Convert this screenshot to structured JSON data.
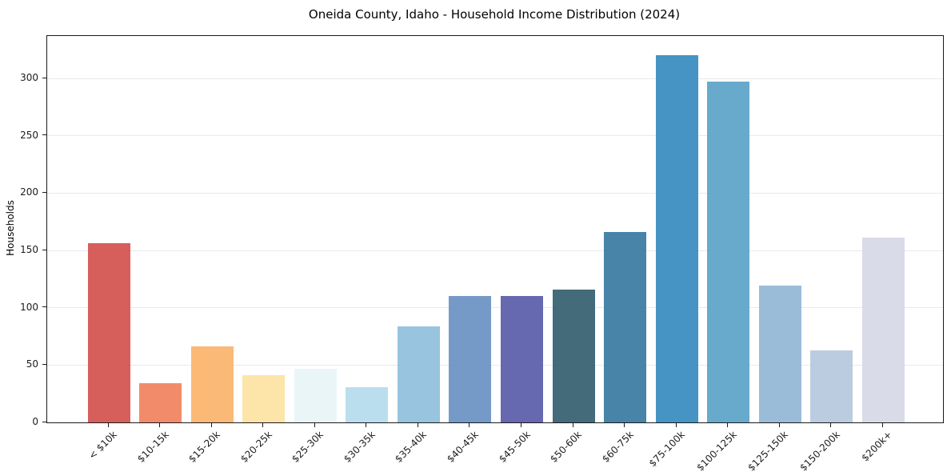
{
  "chart_data": {
    "type": "bar",
    "title": "Oneida County, Idaho - Household Income Distribution (2024)",
    "xlabel": "",
    "ylabel": "Households",
    "categories": [
      "< $10k",
      "$10-15k",
      "$15-20k",
      "$20-25k",
      "$25-30k",
      "$30-35k",
      "$35-40k",
      "$40-45k",
      "$45-50k",
      "$50-60k",
      "$60-75k",
      "$75-100k",
      "$100-125k",
      "$125-150k",
      "$150-200k",
      "$200k+"
    ],
    "values": [
      156,
      34,
      66,
      41,
      47,
      31,
      84,
      110,
      110,
      116,
      166,
      320,
      297,
      119,
      63,
      161
    ],
    "bar_colors": [
      "#d4534f",
      "#f0825f",
      "#fab46c",
      "#fde2a3",
      "#e8f4f8",
      "#b5dcec",
      "#90bfdd",
      "#6b92c4",
      "#5a5caa",
      "#356070",
      "#3a7aa1",
      "#388cbe",
      "#5da4c8",
      "#92b7d5",
      "#b7c8de",
      "#d6d8e6"
    ],
    "yticks": [
      0,
      50,
      100,
      150,
      200,
      250,
      300
    ],
    "ylim": [
      0,
      337
    ],
    "grid": "horizontal",
    "gridline_color": "#e9e9e9",
    "axis_color": "#1a1a1a",
    "text_color": "#1c1c1c",
    "background": "#ffffff",
    "legend": "none"
  }
}
